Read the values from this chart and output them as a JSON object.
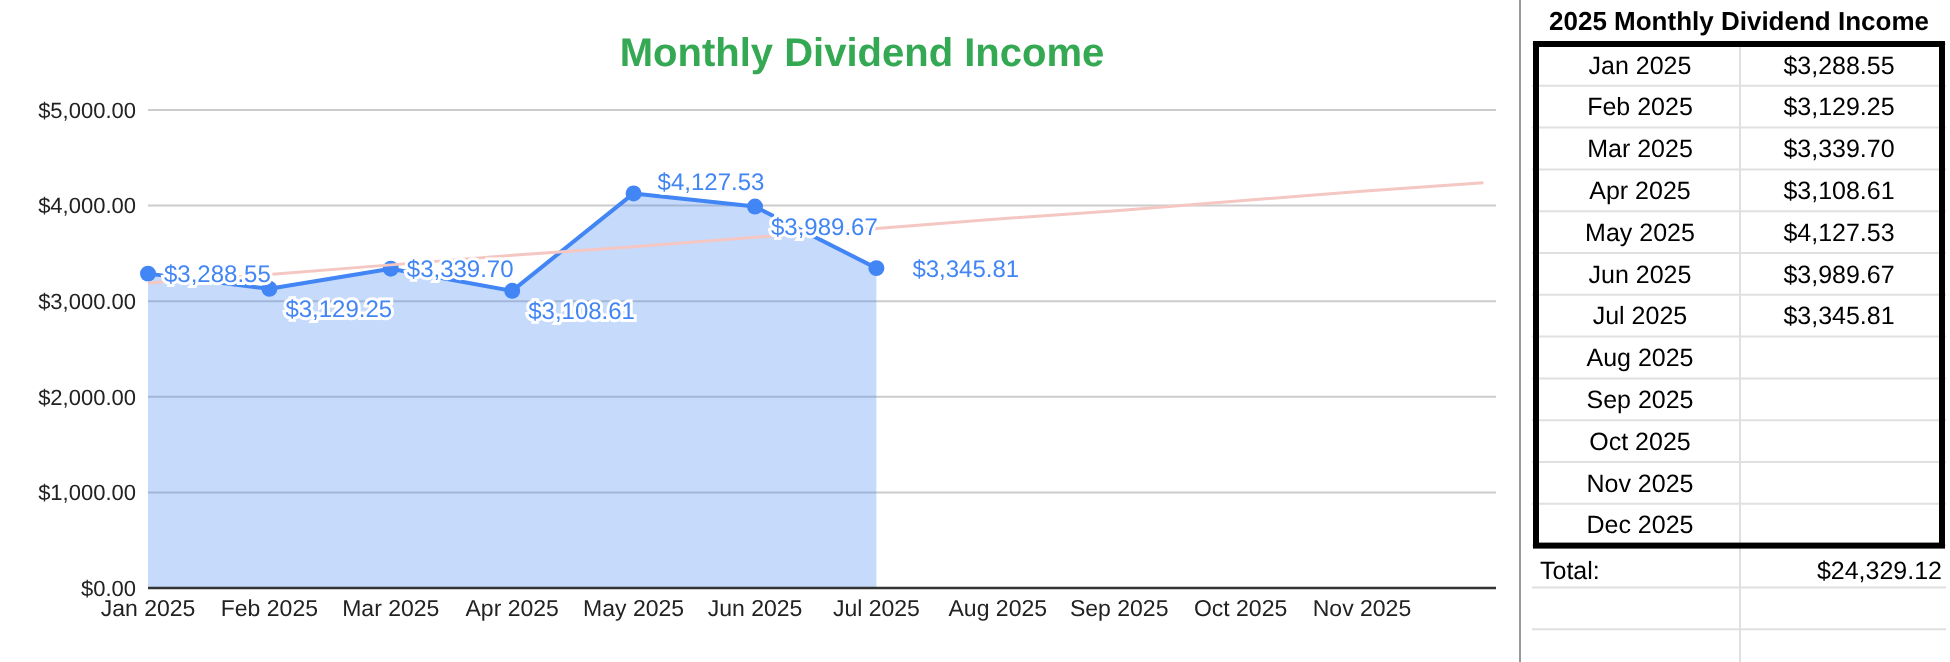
{
  "chart_data": [
    {
      "type": "area",
      "title": "Monthly Dividend Income",
      "categories": [
        "Jan 2025",
        "Feb 2025",
        "Mar 2025",
        "Apr 2025",
        "May 2025",
        "Jun 2025",
        "Jul 2025",
        "Aug 2025",
        "Sep 2025",
        "Oct 2025",
        "Nov 2025",
        null
      ],
      "series": [
        {
          "type": "area",
          "color": "#4285f4",
          "marker": "circle",
          "values": [
            3288.55,
            3129.25,
            3339.7,
            3108.61,
            4127.53,
            3989.67,
            3345.81,
            null,
            null,
            null,
            null,
            null
          ],
          "value_labels": [
            "$3,288.55",
            "$3,129.25",
            "$3,339.70",
            "$3,108.61",
            "$4,127.53",
            "$3,989.67",
            "$3,345.81",
            null,
            null,
            null,
            null,
            null
          ]
        },
        {
          "type": "line",
          "color": "#f4c7c3",
          "values": [
            3190,
            3280,
            3380,
            3480,
            3570,
            3670,
            3760,
            3860,
            3950,
            4050,
            4150,
            4240
          ]
        }
      ],
      "ylim": [
        0,
        5000
      ],
      "yticks": [
        {
          "value": 0,
          "label": "$0.00"
        },
        {
          "value": 1000,
          "label": "$1,000.00"
        },
        {
          "value": 2000,
          "label": "$2,000.00"
        },
        {
          "value": 3000,
          "label": "$3,000.00"
        },
        {
          "value": 4000,
          "label": "$4,000.00"
        },
        {
          "value": 5000,
          "label": "$5,000.00"
        }
      ],
      "grid": "y"
    },
    {
      "type": "other",
      "title": "2025 Monthly Dividend Income",
      "categories": [
        "Jan 2025",
        "Feb 2025",
        "Mar 2025",
        "Apr 2025",
        "May 2025",
        "Jun 2025",
        "Jul 2025",
        "Aug 2025",
        "Sep 2025",
        "Oct 2025",
        "Nov 2025",
        "Dec 2025"
      ],
      "value_labels": [
        "$3,288.55",
        "$3,129.25",
        "$3,339.70",
        "$3,108.61",
        "$4,127.53",
        "$3,989.67",
        "$3,345.81",
        null,
        null,
        null,
        null,
        null
      ],
      "annotations": [
        "Total:",
        "$24,329.12"
      ]
    }
  ]
}
